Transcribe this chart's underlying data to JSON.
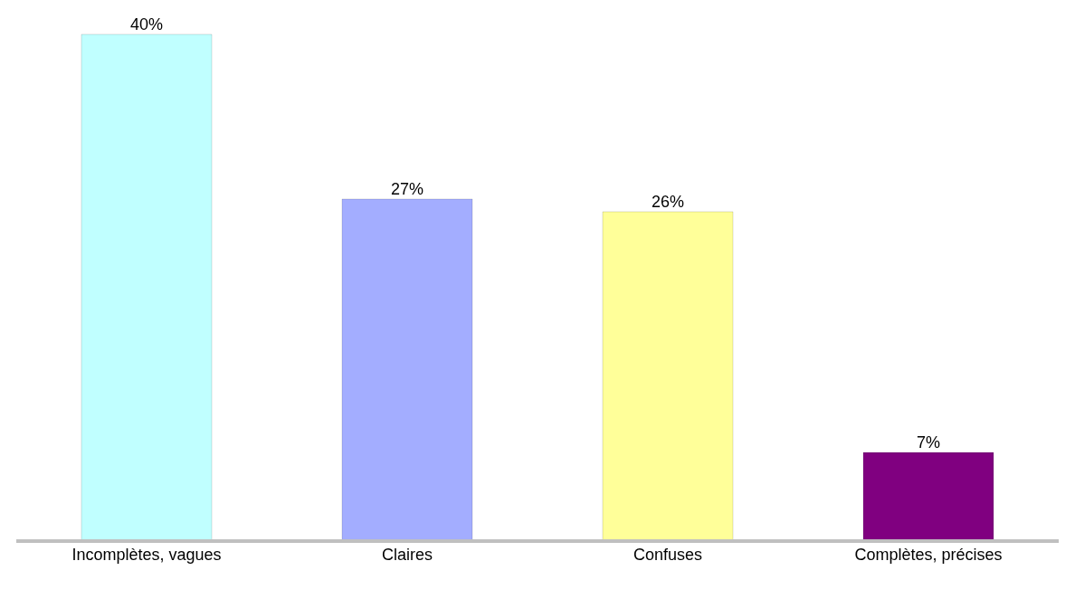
{
  "chart_data": {
    "type": "bar",
    "categories": [
      "Incomplètes, vagues",
      "Claires",
      "Confuses",
      "Complètes, précises"
    ],
    "values": [
      40,
      27,
      26,
      7
    ],
    "colors": [
      "#c0ffff",
      "#a3adff",
      "#ffff99",
      "#800080"
    ],
    "value_labels": [
      "40%",
      "27%",
      "26%",
      "7%"
    ]
  }
}
